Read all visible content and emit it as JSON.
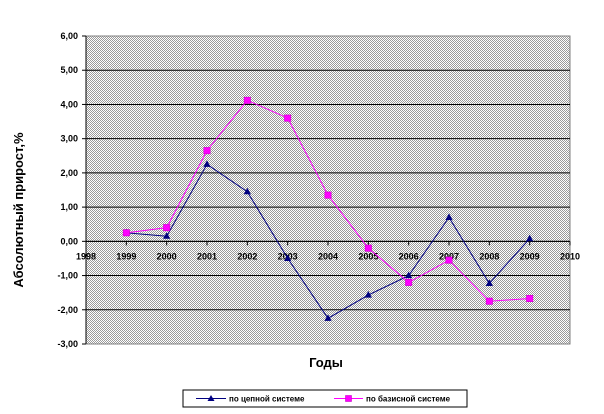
{
  "chart_data": {
    "type": "line",
    "title": "",
    "xlabel": "Годы",
    "ylabel": "Абсолютный прирост,%",
    "x_ticks": [
      "1998",
      "1999",
      "2000",
      "2001",
      "2002",
      "2003",
      "2004",
      "2005",
      "2006",
      "2007",
      "2008",
      "2009",
      "2010"
    ],
    "y_ticks": [
      "-3,00",
      "-2,00",
      "-1,00",
      "0,00",
      "1,00",
      "2,00",
      "3,00",
      "4,00",
      "5,00",
      "6,00"
    ],
    "xlim": [
      1998,
      2010
    ],
    "ylim": [
      -3,
      6
    ],
    "grid": "horizontal",
    "plot_background": "#c0c0c0",
    "legend_position": "bottom",
    "series": [
      {
        "name": "по цепной системе",
        "color": "#000080",
        "marker": "triangle",
        "x": [
          1999,
          2000,
          2001,
          2002,
          2003,
          2004,
          2005,
          2006,
          2007,
          2008,
          2009
        ],
        "y": [
          0.25,
          0.15,
          2.25,
          1.45,
          -0.5,
          -2.25,
          -1.57,
          -1.0,
          0.7,
          -1.23,
          0.08
        ]
      },
      {
        "name": "по базисной системе",
        "color": "#ff00ff",
        "marker": "square",
        "x": [
          1999,
          2000,
          2001,
          2002,
          2003,
          2004,
          2005,
          2006,
          2007,
          2008,
          2009
        ],
        "y": [
          0.25,
          0.4,
          2.65,
          4.12,
          3.6,
          1.35,
          -0.2,
          -1.2,
          -0.55,
          -1.75,
          -1.67
        ]
      }
    ]
  }
}
